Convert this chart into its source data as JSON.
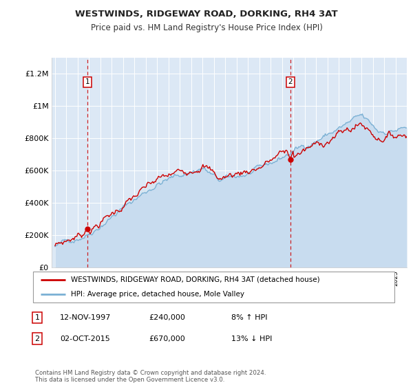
{
  "title": "WESTWINDS, RIDGEWAY ROAD, DORKING, RH4 3AT",
  "subtitle": "Price paid vs. HM Land Registry's House Price Index (HPI)",
  "legend_line1": "WESTWINDS, RIDGEWAY ROAD, DORKING, RH4 3AT (detached house)",
  "legend_line2": "HPI: Average price, detached house, Mole Valley",
  "transaction1_date": "12-NOV-1997",
  "transaction1_price": "£240,000",
  "transaction1_hpi": "8% ↑ HPI",
  "transaction2_date": "02-OCT-2015",
  "transaction2_price": "£670,000",
  "transaction2_hpi": "13% ↓ HPI",
  "footer": "Contains HM Land Registry data © Crown copyright and database right 2024.\nThis data is licensed under the Open Government Licence v3.0.",
  "hpi_line_color": "#7ab0d4",
  "price_line_color": "#cc0000",
  "bg_color": "#dce8f5",
  "yticks": [
    0,
    200000,
    400000,
    600000,
    800000,
    1000000,
    1200000
  ],
  "ytick_labels": [
    "£0",
    "£200K",
    "£400K",
    "£600K",
    "£800K",
    "£1M",
    "£1.2M"
  ],
  "ylim": [
    0,
    1300000
  ],
  "transaction1_year": 1997.87,
  "transaction2_year": 2015.75,
  "transaction1_price_val": 240000,
  "transaction2_price_val": 670000
}
